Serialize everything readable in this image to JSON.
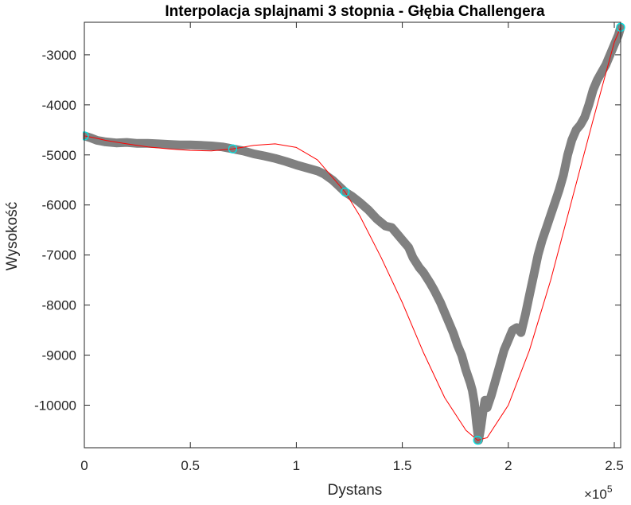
{
  "chart_data": {
    "type": "line",
    "title": "Interpolacja splajnami 3 stopnia - Głębia Challengera",
    "xlabel": "Dystans",
    "ylabel": "Wysokość",
    "x_exponent_label": "×10",
    "x_exponent_power": "5",
    "xlim": [
      0,
      253000
    ],
    "ylim": [
      -10850,
      -2350
    ],
    "xticks": [
      0,
      50000,
      100000,
      150000,
      200000,
      250000
    ],
    "xtick_labels": [
      "0",
      "0.5",
      "1",
      "1.5",
      "2",
      "2.5"
    ],
    "yticks": [
      -10000,
      -9000,
      -8000,
      -7000,
      -6000,
      -5000,
      -4000,
      -3000
    ],
    "ytick_labels": [
      "-10000",
      "-9000",
      "-8000",
      "-7000",
      "-6000",
      "-5000",
      "-4000",
      "-3000"
    ],
    "grid": false,
    "colors": {
      "profile": "#808080",
      "spline": "#ff0000",
      "nodes": "#00e5e5",
      "axes": "#262626"
    },
    "series": [
      {
        "role": "profile",
        "x": [
          0,
          3000,
          6000,
          10000,
          15000,
          20000,
          25000,
          30000,
          35000,
          40000,
          45000,
          50000,
          55000,
          60000,
          65000,
          70000,
          75000,
          80000,
          85000,
          90000,
          95000,
          100000,
          105000,
          110000,
          113000,
          117000,
          120000,
          123000,
          126000,
          130000,
          134000,
          138000,
          140000,
          142000,
          145000,
          148000,
          150000,
          153000,
          155000,
          158000,
          160000,
          163000,
          165000,
          168000,
          170000,
          172000,
          174000,
          176000,
          178000,
          180000,
          182000,
          183000,
          184000,
          185000,
          186000,
          187000,
          188000,
          189000,
          190000,
          192000,
          194000,
          196000,
          198000,
          200000,
          202000,
          204000,
          206000,
          208000,
          210000,
          212000,
          214000,
          216000,
          218000,
          220000,
          222000,
          224000,
          226000,
          228000,
          230000,
          232000,
          234000,
          236000,
          238000,
          240000,
          242000,
          244000,
          246000,
          248000,
          250000,
          252000,
          253000
        ],
        "y": [
          -4620,
          -4660,
          -4710,
          -4740,
          -4760,
          -4750,
          -4770,
          -4770,
          -4780,
          -4790,
          -4800,
          -4800,
          -4810,
          -4820,
          -4840,
          -4880,
          -4920,
          -4980,
          -5020,
          -5070,
          -5130,
          -5200,
          -5260,
          -5320,
          -5380,
          -5500,
          -5620,
          -5740,
          -5820,
          -5950,
          -6100,
          -6280,
          -6350,
          -6420,
          -6450,
          -6600,
          -6700,
          -6850,
          -7050,
          -7250,
          -7350,
          -7550,
          -7700,
          -7950,
          -8150,
          -8350,
          -8550,
          -8800,
          -9000,
          -9300,
          -9550,
          -9700,
          -9950,
          -10350,
          -10700,
          -10450,
          -10150,
          -9900,
          -10050,
          -9800,
          -9500,
          -9200,
          -8900,
          -8700,
          -8500,
          -8450,
          -8550,
          -8200,
          -7800,
          -7400,
          -7000,
          -6700,
          -6450,
          -6200,
          -5950,
          -5700,
          -5400,
          -5000,
          -4700,
          -4500,
          -4400,
          -4250,
          -4000,
          -3700,
          -3500,
          -3350,
          -3200,
          -3000,
          -2800,
          -2600,
          -2450
        ]
      },
      {
        "role": "spline",
        "x": [
          0,
          5000,
          10000,
          20000,
          30000,
          40000,
          50000,
          60000,
          70000,
          80000,
          90000,
          100000,
          110000,
          123000,
          130000,
          140000,
          150000,
          160000,
          170000,
          180000,
          185500,
          190000,
          200000,
          210000,
          220000,
          230000,
          240000,
          250000,
          253000
        ],
        "y": [
          -4620,
          -4660,
          -4710,
          -4780,
          -4840,
          -4880,
          -4910,
          -4920,
          -4880,
          -4810,
          -4780,
          -4850,
          -5100,
          -5740,
          -6220,
          -7050,
          -7950,
          -8950,
          -9850,
          -10500,
          -10700,
          -10650,
          -10000,
          -8900,
          -7500,
          -5900,
          -4300,
          -2750,
          -2450
        ]
      },
      {
        "role": "nodes",
        "x": [
          0,
          70000,
          123000,
          185500,
          253000
        ],
        "y": [
          -4620,
          -4880,
          -5740,
          -10700,
          -2450
        ]
      }
    ]
  }
}
